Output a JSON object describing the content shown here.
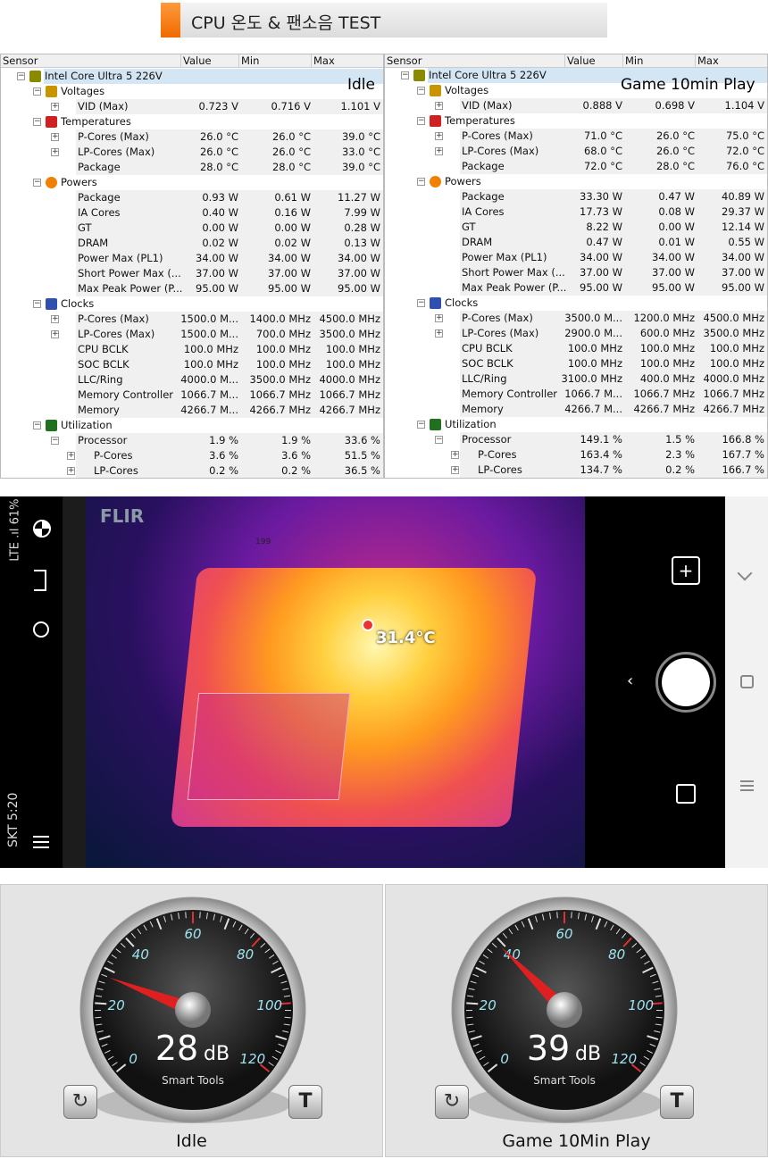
{
  "title": "CPU 온도 & 팬소음 TEST",
  "columns": [
    "Sensor",
    "Value",
    "Min",
    "Max"
  ],
  "tables": [
    {
      "tag": "Idle",
      "rows": [
        [
          "Intel Core Ultra 5 226V",
          "",
          "",
          "",
          0,
          "cpu"
        ],
        [
          "Voltages",
          "",
          "",
          "",
          1,
          "volt"
        ],
        [
          "VID (Max)",
          "0.723 V",
          "0.716 V",
          "1.101 V",
          2,
          "+"
        ],
        [
          "Temperatures",
          "",
          "",
          "",
          1,
          "temp"
        ],
        [
          "P-Cores (Max)",
          "26.0 °C",
          "26.0 °C",
          "39.0 °C",
          2,
          "+"
        ],
        [
          "LP-Cores (Max)",
          "26.0 °C",
          "26.0 °C",
          "33.0 °C",
          2,
          "+"
        ],
        [
          "Package",
          "28.0 °C",
          "28.0 °C",
          "39.0 °C",
          2,
          ""
        ],
        [
          "Powers",
          "",
          "",
          "",
          1,
          "power"
        ],
        [
          "Package",
          "0.93 W",
          "0.61 W",
          "11.27 W",
          2,
          ""
        ],
        [
          "IA Cores",
          "0.40 W",
          "0.16 W",
          "7.99 W",
          2,
          ""
        ],
        [
          "GT",
          "0.00 W",
          "0.00 W",
          "0.28 W",
          2,
          ""
        ],
        [
          "DRAM",
          "0.02 W",
          "0.02 W",
          "0.13 W",
          2,
          ""
        ],
        [
          "Power Max (PL1)",
          "34.00 W",
          "34.00 W",
          "34.00 W",
          2,
          ""
        ],
        [
          "Short Power Max (...",
          "37.00 W",
          "37.00 W",
          "37.00 W",
          2,
          ""
        ],
        [
          "Max Peak Power (P...",
          "95.00 W",
          "95.00 W",
          "95.00 W",
          2,
          ""
        ],
        [
          "Clocks",
          "",
          "",
          "",
          1,
          "clock"
        ],
        [
          "P-Cores (Max)",
          "1500.0 M...",
          "1400.0 MHz",
          "4500.0 MHz",
          2,
          "+"
        ],
        [
          "LP-Cores (Max)",
          "1500.0 M...",
          "700.0 MHz",
          "3500.0 MHz",
          2,
          "+"
        ],
        [
          "CPU BCLK",
          "100.0 MHz",
          "100.0 MHz",
          "100.0 MHz",
          2,
          ""
        ],
        [
          "SOC BCLK",
          "100.0 MHz",
          "100.0 MHz",
          "100.0 MHz",
          2,
          ""
        ],
        [
          "LLC/Ring",
          "4000.0 M...",
          "3500.0 MHz",
          "4000.0 MHz",
          2,
          ""
        ],
        [
          "Memory Controller",
          "1066.7 M...",
          "1066.7 MHz",
          "1066.7 MHz",
          2,
          ""
        ],
        [
          "Memory",
          "4266.7 M...",
          "4266.7 MHz",
          "4266.7 MHz",
          2,
          ""
        ],
        [
          "Utilization",
          "",
          "",
          "",
          1,
          "util"
        ],
        [
          "Processor",
          "1.9 %",
          "1.9 %",
          "33.6 %",
          2,
          "-"
        ],
        [
          "P-Cores",
          "3.6 %",
          "3.6 %",
          "51.5 %",
          3,
          "+"
        ],
        [
          "LP-Cores",
          "0.2 %",
          "0.2 %",
          "36.5 %",
          3,
          "+"
        ]
      ]
    },
    {
      "tag": "Game 10min Play",
      "rows": [
        [
          "Intel Core Ultra 5 226V",
          "",
          "",
          "",
          0,
          "cpu"
        ],
        [
          "Voltages",
          "",
          "",
          "",
          1,
          "volt"
        ],
        [
          "VID (Max)",
          "0.888 V",
          "0.698 V",
          "1.104 V",
          2,
          "+"
        ],
        [
          "Temperatures",
          "",
          "",
          "",
          1,
          "temp"
        ],
        [
          "P-Cores (Max)",
          "71.0 °C",
          "26.0 °C",
          "75.0 °C",
          2,
          "+"
        ],
        [
          "LP-Cores (Max)",
          "68.0 °C",
          "26.0 °C",
          "72.0 °C",
          2,
          "+"
        ],
        [
          "Package",
          "72.0 °C",
          "28.0 °C",
          "76.0 °C",
          2,
          ""
        ],
        [
          "Powers",
          "",
          "",
          "",
          1,
          "power"
        ],
        [
          "Package",
          "33.30 W",
          "0.47 W",
          "40.89 W",
          2,
          ""
        ],
        [
          "IA Cores",
          "17.73 W",
          "0.08 W",
          "29.37 W",
          2,
          ""
        ],
        [
          "GT",
          "8.22 W",
          "0.00 W",
          "12.14 W",
          2,
          ""
        ],
        [
          "DRAM",
          "0.47 W",
          "0.01 W",
          "0.55 W",
          2,
          ""
        ],
        [
          "Power Max (PL1)",
          "34.00 W",
          "34.00 W",
          "34.00 W",
          2,
          ""
        ],
        [
          "Short Power Max (...",
          "37.00 W",
          "37.00 W",
          "37.00 W",
          2,
          ""
        ],
        [
          "Max Peak Power (P...",
          "95.00 W",
          "95.00 W",
          "95.00 W",
          2,
          ""
        ],
        [
          "Clocks",
          "",
          "",
          "",
          1,
          "clock"
        ],
        [
          "P-Cores (Max)",
          "3500.0 M...",
          "1200.0 MHz",
          "4500.0 MHz",
          2,
          "+"
        ],
        [
          "LP-Cores (Max)",
          "2900.0 M...",
          "600.0 MHz",
          "3500.0 MHz",
          2,
          "+"
        ],
        [
          "CPU BCLK",
          "100.0 MHz",
          "100.0 MHz",
          "100.0 MHz",
          2,
          ""
        ],
        [
          "SOC BCLK",
          "100.0 MHz",
          "100.0 MHz",
          "100.0 MHz",
          2,
          ""
        ],
        [
          "LLC/Ring",
          "3100.0 MHz",
          "400.0 MHz",
          "4000.0 MHz",
          2,
          ""
        ],
        [
          "Memory Controller",
          "1066.7 M...",
          "1066.7 MHz",
          "1066.7 MHz",
          2,
          ""
        ],
        [
          "Memory",
          "4266.7 M...",
          "4266.7 MHz",
          "4266.7 MHz",
          2,
          ""
        ],
        [
          "Utilization",
          "",
          "",
          "",
          1,
          "util"
        ],
        [
          "Processor",
          "149.1 %",
          "1.5 %",
          "166.8 %",
          2,
          "-"
        ],
        [
          "P-Cores",
          "163.4 %",
          "2.3 %",
          "167.7 %",
          3,
          "+"
        ],
        [
          "LP-Cores",
          "134.7 %",
          "0.2 %",
          "166.7 %",
          3,
          "+"
        ]
      ]
    }
  ],
  "thermal": {
    "status": "SKT 5:20",
    "battery": "61%",
    "network": "LTE",
    "brand": "FLIR",
    "spot_temp": "31.4°C",
    "label_199": "199"
  },
  "gauges": [
    {
      "value": 28,
      "unit": "dB",
      "brand": "Smart Tools",
      "label": "Idle"
    },
    {
      "value": 39,
      "unit": "dB",
      "brand": "Smart Tools",
      "label": "Game 10Min Play"
    }
  ],
  "gauge_ticks": [
    "0",
    "20",
    "40",
    "60",
    "80",
    "100",
    "120"
  ],
  "icons": {
    "reset": "refresh-icon",
    "text": "T"
  }
}
